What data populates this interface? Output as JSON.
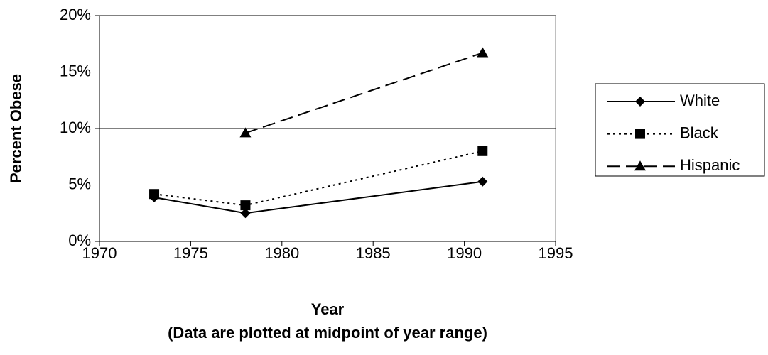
{
  "chart_data": {
    "type": "line",
    "y_label": "Percent Obese",
    "x_label": "Year",
    "subtitle": "(Data are plotted at midpoint of year range)",
    "x": [
      1973,
      1978,
      1991
    ],
    "series": [
      {
        "name": "White",
        "color": "#000000",
        "marker": "diamond",
        "dash": "solid",
        "values": [
          3.9,
          2.5,
          5.3
        ]
      },
      {
        "name": "Black",
        "color": "#000000",
        "marker": "square",
        "dash": "dotted",
        "values": [
          4.2,
          3.2,
          8.0
        ]
      },
      {
        "name": "Hispanic",
        "color": "#000000",
        "marker": "triangle",
        "dash": "dashed",
        "values": [
          null,
          9.6,
          16.7
        ]
      }
    ],
    "xlim": [
      1970,
      1995
    ],
    "xticks": [
      1970,
      1975,
      1980,
      1985,
      1990,
      1995
    ],
    "ylim": [
      0,
      20
    ],
    "yticks": [
      {
        "value": 0,
        "label": "0%"
      },
      {
        "value": 5,
        "label": "5%"
      },
      {
        "value": 10,
        "label": "10%"
      },
      {
        "value": 15,
        "label": "15%"
      },
      {
        "value": 20,
        "label": "20%"
      }
    ],
    "grid": true,
    "legend": "right"
  }
}
